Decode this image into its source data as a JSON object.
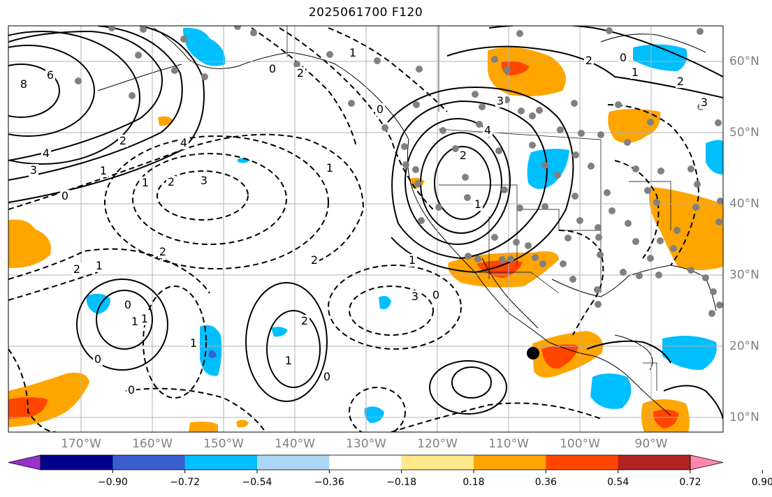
{
  "title": "2025061700 F120",
  "map": {
    "lon_labels": [
      "170°W",
      "160°W",
      "150°W",
      "140°W",
      "130°W",
      "120°W",
      "110°W",
      "100°W",
      "90°W"
    ],
    "lat_labels": [
      "60°N",
      "50°N",
      "40°N",
      "30°N",
      "20°N",
      "10°N"
    ],
    "contour_labels": [
      "8",
      "6",
      "4",
      "3",
      "2",
      "1",
      "0",
      "1",
      "2",
      "3",
      "4",
      "2",
      "1",
      "0",
      "2",
      "1",
      "0",
      "1",
      "2",
      "1",
      "0",
      "3",
      "2",
      "1",
      "4",
      "3",
      "2",
      "0",
      "1",
      "2",
      "3",
      "2",
      "1",
      "0",
      "1",
      "0",
      "2",
      "1",
      "0",
      "1",
      "0"
    ],
    "colors": {
      "positive_light": "#ffe98a",
      "positive_mid": "#ffa500",
      "positive_strong": "#ff4500",
      "positive_max": "#b22222",
      "negative_light": "#add8f5",
      "negative_mid": "#00bfff",
      "negative_strong": "#3a5fcd",
      "negative_max": "#00008b",
      "grid": "#b0b0b0",
      "coast": "#000000",
      "station": "#808080",
      "marker": "#000000"
    }
  },
  "colorbar": {
    "labels": [
      "−0.90",
      "−0.72",
      "−0.54",
      "−0.36",
      "−0.18",
      "0.18",
      "0.36",
      "0.54",
      "0.72",
      "0.90"
    ],
    "colors": [
      "#9932cc",
      "#00008b",
      "#3a5fcd",
      "#00bfff",
      "#add8f5",
      "#ffffff",
      "#ffe98a",
      "#ffa500",
      "#ff4500",
      "#b22222",
      "#ff88aa"
    ]
  }
}
